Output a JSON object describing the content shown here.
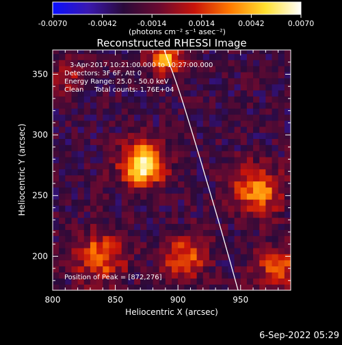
{
  "chart_data": {
    "type": "heatmap",
    "title": "Reconstructed RHESSI Image",
    "xlabel": "Heliocentric X (arcsec)",
    "ylabel": "Heliocentric Y (arcsec)",
    "xlim": [
      800,
      990
    ],
    "ylim": [
      172,
      370
    ],
    "x_ticks": [
      800,
      850,
      900,
      950
    ],
    "y_ticks": [
      200,
      250,
      300,
      350
    ],
    "grid": false,
    "colorbar": {
      "label": "(photons cm⁻² s⁻¹ asec⁻²)",
      "range": [
        -0.007,
        0.007
      ],
      "tick_values": [
        -0.007,
        -0.0042,
        -0.0014,
        0.0014,
        0.0042,
        0.007
      ],
      "tick_labels": [
        "-0.0070",
        "-0.0042",
        "-0.0014",
        "0.0014",
        "0.0042",
        "0.0070"
      ],
      "colors": [
        "#0a10ff",
        "#3a18b0",
        "#2a0a3a",
        "#6a0a30",
        "#c8140a",
        "#ff7a00",
        "#ffe030",
        "#ffffff"
      ]
    },
    "annotations": [
      "3-Apr-2017 10:21:00.000 to 10:27:00.000",
      "Detectors: 3F 6F, Att 0",
      "Energy Range: 25.0 - 50.0 keV",
      "Clean     Total counts: 1.76E+04"
    ],
    "peak_label": "Position of Peak = [872,276]",
    "sources": [
      {
        "x": 872,
        "y": 276,
        "peak": 1.0,
        "sigma": 12
      },
      {
        "x": 890,
        "y": 364,
        "peak": 0.65,
        "sigma": 10
      },
      {
        "x": 962,
        "y": 255,
        "peak": 0.62,
        "sigma": 14
      },
      {
        "x": 838,
        "y": 200,
        "peak": 0.55,
        "sigma": 14
      },
      {
        "x": 905,
        "y": 200,
        "peak": 0.55,
        "sigma": 12
      },
      {
        "x": 980,
        "y": 190,
        "peak": 0.5,
        "sigma": 12
      },
      {
        "x": 812,
        "y": 350,
        "peak": 0.3,
        "sigma": 10
      }
    ],
    "limb_curve": [
      [
        889,
        370
      ],
      [
        900,
        340
      ],
      [
        912,
        300
      ],
      [
        925,
        255
      ],
      [
        935,
        220
      ],
      [
        948,
        172
      ]
    ]
  },
  "footer": {
    "date_stamp": "6-Sep-2022 05:29"
  }
}
